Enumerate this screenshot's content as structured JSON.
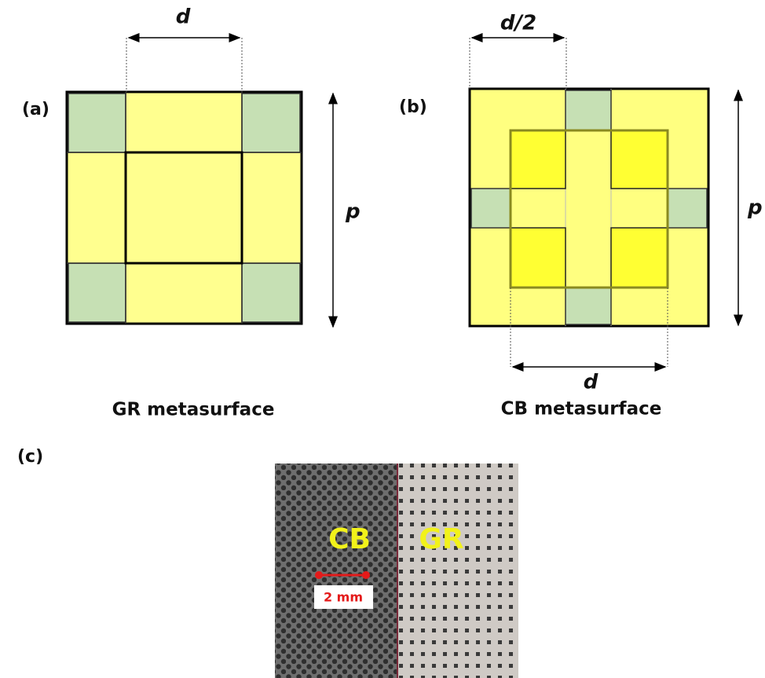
{
  "panels": [
    {
      "label": "(a)",
      "dimension_top": "d",
      "dimension_side": "p",
      "caption": "GR metasurface"
    },
    {
      "label": "(b)",
      "dimension_top": "d/2",
      "dimension_side": "p",
      "dimension_bottom": "d",
      "caption": "CB metasurface"
    },
    {
      "label": "(c)",
      "photo_labels": [
        "CB",
        "GR"
      ],
      "scale_bar": "2 mm"
    }
  ]
}
